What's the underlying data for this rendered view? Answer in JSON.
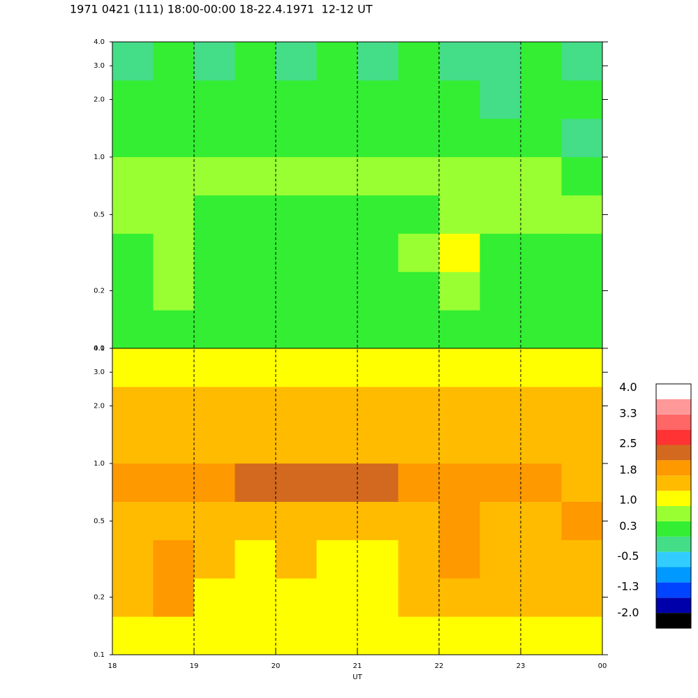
{
  "chart_data": {
    "type": "heatmap",
    "title": "1971 0421 (111) 18:00-00:00 18-22.4.1971  12-12 UT",
    "x_label": "UT",
    "xlim": [
      18,
      24
    ],
    "xticks": [
      18,
      19,
      20,
      21,
      22,
      23,
      {
        "value": 24,
        "label": "00"
      }
    ],
    "grid": true,
    "log_y": true,
    "panels": [
      {
        "ylim": [
          0.1,
          4.0
        ],
        "yticks": [
          0.1,
          0.2,
          0.5,
          {
            "value": 1,
            "label": "1.0"
          },
          {
            "value": 2,
            "label": "2.0"
          },
          {
            "value": 3,
            "label": "3.0"
          },
          {
            "value": 4,
            "label": "4.0"
          }
        ],
        "z": [
          [
            0.2,
            0.2,
            0.2,
            0.1,
            0.2,
            0.2,
            0.2,
            0.2,
            0.2,
            0.2,
            0.3,
            0.2
          ],
          [
            0.3,
            0.6,
            0.3,
            0.2,
            0.2,
            0.2,
            0.2,
            0.3,
            0.5,
            0.3,
            0.3,
            0.3
          ],
          [
            0.4,
            0.7,
            0.3,
            0.3,
            0.3,
            0.2,
            0.2,
            0.7,
            0.9,
            0.4,
            0.3,
            0.3
          ],
          [
            0.6,
            0.5,
            0.4,
            0.4,
            0.4,
            0.3,
            0.3,
            0.4,
            0.8,
            0.7,
            0.6,
            0.5
          ],
          [
            0.7,
            0.8,
            0.8,
            0.7,
            0.8,
            0.8,
            0.8,
            0.6,
            0.7,
            0.6,
            0.5,
            0.3
          ],
          [
            0.4,
            0.3,
            0.4,
            0.3,
            0.3,
            0.3,
            0.4,
            0.3,
            0.3,
            0.2,
            0.3,
            0
          ],
          [
            0.3,
            0.2,
            0.3,
            0.2,
            0.3,
            0.2,
            0.3,
            0.2,
            0.2,
            0,
            0.2,
            0.2
          ],
          [
            0,
            0.2,
            0,
            0.2,
            0,
            0.2,
            0,
            0.2,
            0,
            0,
            0.2,
            0
          ]
        ]
      },
      {
        "ylim": [
          0.1,
          4.0
        ],
        "yticks": [
          0.1,
          0.2,
          0.5,
          {
            "value": 1,
            "label": "1.0"
          },
          {
            "value": 2,
            "label": "2.0"
          },
          {
            "value": 3,
            "label": "3.0"
          },
          {
            "value": 4,
            "label": "4.0"
          }
        ],
        "z": [
          [
            1.1,
            1.2,
            1,
            0.9,
            1.1,
            1,
            1.1,
            1.1,
            1.2,
            1.1,
            1.1,
            1.1
          ],
          [
            1.4,
            1.7,
            1.1,
            1.1,
            1.1,
            1.1,
            1.2,
            1.4,
            1.6,
            1.4,
            1.3,
            1.4
          ],
          [
            1.5,
            1.7,
            1.3,
            1.2,
            1.3,
            1.2,
            1.2,
            1.4,
            1.8,
            1.5,
            1.5,
            1.6
          ],
          [
            1.4,
            1.5,
            1.3,
            1.3,
            1.3,
            1.4,
            1.3,
            1.4,
            1.9,
            1.6,
            1.6,
            1.7
          ],
          [
            2,
            2,
            2,
            2.1,
            2.1,
            2.1,
            2.1,
            2,
            2,
            1.9,
            1.8,
            1.6
          ],
          [
            1.5,
            1.4,
            1.5,
            1.4,
            1.5,
            1.4,
            1.5,
            1.4,
            1.5,
            1.5,
            1.4,
            1.3
          ],
          [
            1.4,
            1.5,
            1.6,
            1.6,
            1.5,
            1.6,
            1.5,
            1.5,
            1.6,
            1.4,
            1.3,
            1.3
          ],
          [
            1,
            1,
            1,
            1,
            1,
            1,
            1,
            1,
            1,
            1,
            1,
            1
          ]
        ]
      }
    ],
    "colorbar": {
      "clim": [
        -2.4,
        4.1
      ],
      "colors": [
        "#000000",
        "#0000aa",
        "#0044ff",
        "#0099ff",
        "#33ccff",
        "#44dd88",
        "#33ee33",
        "#99ff33",
        "#ffff00",
        "#ffbb00",
        "#ff9900",
        "#d2691e",
        "#ff3333",
        "#ff6666",
        "#ff9999",
        "#ffffff"
      ],
      "ticks": [
        {
          "value": 4,
          "label": "4.0"
        },
        3.3,
        2.5,
        1.8,
        {
          "value": 1,
          "label": "1.0"
        },
        0.3,
        -0.5,
        -1.3,
        {
          "value": -2,
          "label": "-2.0"
        }
      ]
    }
  }
}
